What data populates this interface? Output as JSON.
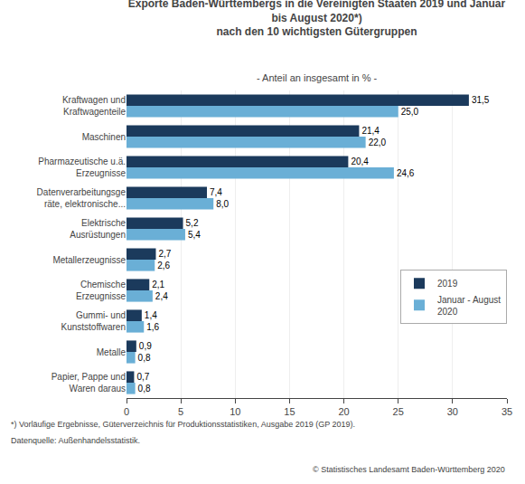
{
  "chart_data": {
    "type": "bar",
    "orientation": "horizontal",
    "title": "Exporte Baden-Württembergs in die Vereinigten Staaten 2019 und Januar\nbis August 2020*)\nnach den 10 wichtigsten Gütergruppen",
    "subtitle": "- Anteil an insgesamt in % -",
    "annotations": [
      "*) Vorläufige Ergebnisse, Güterverzeichnis für Produktionsstatistiken, Ausgabe 2019 (GP 2019).",
      "Datenquelle: Außenhandelsstatistik.",
      "© Statistisches Landesamt Baden-Württemberg 2020"
    ],
    "categories": [
      "Kraftwagen und\nKraftwagenteile",
      "Maschinen",
      "Pharmazeutische u.ä.\nErzeugnisse",
      "Datenverarbeitungsge\nräte, elektronische...",
      "Elektrische\nAusrüstungen",
      "Metallerzeugnisse",
      "Chemische\nErzeugnisse",
      "Gummi- und\nKunststoffwaren",
      "Metalle",
      "Papier, Pappe und\nWaren daraus"
    ],
    "series": [
      {
        "name": "2019",
        "color": "#1b3a5c",
        "values": [
          31.5,
          21.4,
          20.4,
          7.4,
          5.2,
          2.7,
          2.1,
          1.4,
          0.9,
          0.7
        ],
        "value_labels": [
          "31,5",
          "21,4",
          "20,4",
          "7,4",
          "5,2",
          "2,7",
          "2,1",
          "1,4",
          "0,9",
          "0,7"
        ]
      },
      {
        "name": "Januar - August\n2020",
        "color": "#6aafd6",
        "values": [
          25.0,
          22.0,
          24.6,
          8.0,
          5.4,
          2.6,
          2.4,
          1.6,
          0.8,
          0.8
        ],
        "value_labels": [
          "25,0",
          "22,0",
          "24,6",
          "8,0",
          "5,4",
          "2,6",
          "2,4",
          "1,6",
          "0,8",
          "0,8"
        ]
      }
    ],
    "xlim": [
      0,
      35
    ],
    "xticks": [
      0,
      5,
      10,
      15,
      20,
      25,
      30,
      35
    ],
    "grid": true,
    "legend": "right",
    "data_labels": true
  }
}
